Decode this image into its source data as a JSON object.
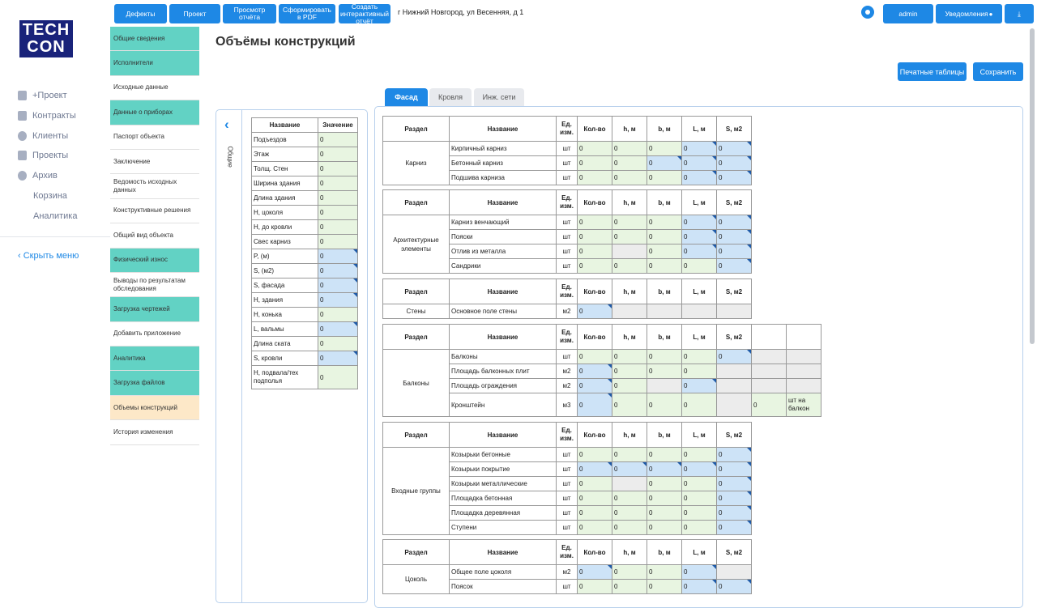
{
  "logo": {
    "line1": "TECH",
    "line2": "CON"
  },
  "left_nav": {
    "items": [
      {
        "label": "+Проект",
        "icon": "clipboard-icon",
        "top": 110
      },
      {
        "label": "Контракты",
        "icon": "document-icon",
        "top": 135
      },
      {
        "label": "Клиенты",
        "icon": "users-icon",
        "top": 160
      },
      {
        "label": "Проекты",
        "icon": "folder-icon",
        "top": 184
      },
      {
        "label": "Архив",
        "icon": "help-icon",
        "top": 209
      },
      {
        "label": "Корзина",
        "icon": "",
        "top": 234
      },
      {
        "label": "Аналитика",
        "icon": "",
        "top": 259
      }
    ],
    "hide_menu": "Скрыть меню"
  },
  "top_buttons": [
    "Дефекты",
    "Проект",
    "Просмотр отчёта",
    "Сформировать в PDF",
    "Создать интерактивный отчёт"
  ],
  "address": "г Нижний Новгород, ул Весенняя, д 1",
  "user_button": "admin",
  "notifications_button": "Уведомления",
  "sub_nav": [
    {
      "label": "Общие сведения",
      "state": "teal"
    },
    {
      "label": "Исполнители",
      "state": "teal"
    },
    {
      "label": "Исходные данные",
      "state": ""
    },
    {
      "label": "Данные о приборах",
      "state": "teal"
    },
    {
      "label": "Паспорт объекта",
      "state": ""
    },
    {
      "label": "Заключение",
      "state": ""
    },
    {
      "label": "Ведомость исходных данных",
      "state": ""
    },
    {
      "label": "Конструктивные решения",
      "state": ""
    },
    {
      "label": "Общий вид объекта",
      "state": ""
    },
    {
      "label": "Физический износ",
      "state": "teal"
    },
    {
      "label": "Выводы по результатам обследования",
      "state": ""
    },
    {
      "label": "Загрузка чертежей",
      "state": "teal"
    },
    {
      "label": "Добавить приложение",
      "state": ""
    },
    {
      "label": "Аналитика",
      "state": "teal"
    },
    {
      "label": "Загрузка файлов",
      "state": "teal"
    },
    {
      "label": "Объемы конструкций",
      "state": "active"
    },
    {
      "label": "История изменения",
      "state": ""
    }
  ],
  "page_title": "Объёмы конструкций",
  "actions": {
    "print_tables": "Печатные таблицы",
    "save": "Сохранить"
  },
  "tabs": [
    {
      "label": "Фасад",
      "active": true
    },
    {
      "label": "Кровля",
      "active": false
    },
    {
      "label": "Инж. сети",
      "active": false
    }
  ],
  "general": {
    "side_label": "Общие",
    "headers": [
      "Название",
      "Значение"
    ],
    "rows": [
      {
        "name": "Подъездов",
        "value": "0",
        "bg": "g"
      },
      {
        "name": "Этаж",
        "value": "0",
        "bg": "g"
      },
      {
        "name": "Толщ. Стен",
        "value": "0",
        "bg": "g"
      },
      {
        "name": "Ширина здания",
        "value": "0",
        "bg": "g"
      },
      {
        "name": "Длина здания",
        "value": "0",
        "bg": "g"
      },
      {
        "name": "H, цоколя",
        "value": "0",
        "bg": "g"
      },
      {
        "name": "H, до кровли",
        "value": "0",
        "bg": "g"
      },
      {
        "name": "Свес карниз",
        "value": "0",
        "bg": "g"
      },
      {
        "name": "P, (м)",
        "value": "0",
        "bg": "b"
      },
      {
        "name": "S, (м2)",
        "value": "0",
        "bg": "b"
      },
      {
        "name": "S, фасада",
        "value": "0",
        "bg": "b"
      },
      {
        "name": "H, здания",
        "value": "0",
        "bg": "b"
      },
      {
        "name": "H, конька",
        "value": "0",
        "bg": "g"
      },
      {
        "name": "L, вальмы",
        "value": "0",
        "bg": "b"
      },
      {
        "name": "Длина ската",
        "value": "0",
        "bg": "g"
      },
      {
        "name": "S, кровли",
        "value": "0",
        "bg": "b"
      },
      {
        "name": "H, подвала/тех подполья",
        "value": "0",
        "bg": "g"
      }
    ]
  },
  "section_headers": [
    "Раздел",
    "Название",
    "Ед. изм.",
    "Кол-во",
    "h, м",
    "b, м",
    "L, м",
    "S, м2"
  ],
  "sections": [
    {
      "name": "Карниз",
      "top": 11,
      "rows": [
        {
          "name": "Кирпичный карниз",
          "unit": "шт",
          "cells": [
            [
              "0",
              "g"
            ],
            [
              "0",
              "g"
            ],
            [
              "0",
              "g"
            ],
            [
              "0",
              "b"
            ],
            [
              "0",
              "b"
            ]
          ]
        },
        {
          "name": "Бетонный карниз",
          "unit": "шт",
          "cells": [
            [
              "0",
              "g"
            ],
            [
              "0",
              "g"
            ],
            [
              "0",
              "b"
            ],
            [
              "0",
              "b"
            ],
            [
              "0",
              "b"
            ]
          ]
        },
        {
          "name": "Подшива карниза",
          "unit": "шт",
          "cells": [
            [
              "0",
              "g"
            ],
            [
              "0",
              "g"
            ],
            [
              "0",
              "g"
            ],
            [
              "0",
              "b"
            ],
            [
              "0",
              "b"
            ]
          ]
        }
      ]
    },
    {
      "name": "Архитектурные элементы",
      "top": 102,
      "rows": [
        {
          "name": "Карниз венчающий",
          "unit": "шт",
          "cells": [
            [
              "0",
              "g"
            ],
            [
              "0",
              "g"
            ],
            [
              "0",
              "g"
            ],
            [
              "0",
              "b"
            ],
            [
              "0",
              "b"
            ]
          ]
        },
        {
          "name": "Пояски",
          "unit": "шт",
          "cells": [
            [
              "0",
              "g"
            ],
            [
              "0",
              "g"
            ],
            [
              "0",
              "g"
            ],
            [
              "0",
              "b"
            ],
            [
              "0",
              "b"
            ]
          ]
        },
        {
          "name": "Отлив из металла",
          "unit": "шт",
          "cells": [
            [
              "0",
              "g"
            ],
            [
              "",
              "x"
            ],
            [
              "0",
              "g"
            ],
            [
              "0",
              "b"
            ],
            [
              "0",
              "b"
            ]
          ]
        },
        {
          "name": "Сандрики",
          "unit": "шт",
          "cells": [
            [
              "0",
              "g"
            ],
            [
              "0",
              "g"
            ],
            [
              "0",
              "g"
            ],
            [
              "0",
              "g"
            ],
            [
              "0",
              "b"
            ]
          ]
        }
      ]
    },
    {
      "name": "Стены",
      "top": 212,
      "rows": [
        {
          "name": "Основное поле стены",
          "unit": "м2",
          "cells": [
            [
              "0",
              "b"
            ],
            [
              "",
              "x"
            ],
            [
              "",
              "x"
            ],
            [
              "",
              "x"
            ],
            [
              "",
              "x"
            ]
          ]
        }
      ]
    },
    {
      "name": "Балконы",
      "top": 268,
      "extra": true,
      "rows": [
        {
          "name": "Балконы",
          "unit": "шт",
          "cells": [
            [
              "0",
              "g"
            ],
            [
              "0",
              "g"
            ],
            [
              "0",
              "g"
            ],
            [
              "0",
              "g"
            ],
            [
              "0",
              "b"
            ],
            [
              "",
              "x"
            ],
            [
              "",
              "x"
            ]
          ]
        },
        {
          "name": "Площадь балконных плит",
          "unit": "м2",
          "cells": [
            [
              "0",
              "b"
            ],
            [
              "0",
              "g"
            ],
            [
              "0",
              "g"
            ],
            [
              "0",
              "g"
            ],
            [
              "",
              "x"
            ],
            [
              "",
              "x"
            ],
            [
              "",
              "x"
            ]
          ]
        },
        {
          "name": "Площадь ограждения",
          "unit": "м2",
          "cells": [
            [
              "0",
              "b"
            ],
            [
              "0",
              "g"
            ],
            [
              "",
              "x"
            ],
            [
              "0",
              "b"
            ],
            [
              "",
              "x"
            ],
            [
              "",
              "x"
            ],
            [
              "",
              "x"
            ]
          ]
        },
        {
          "name": "Кронштейн",
          "unit": "м3",
          "tall": true,
          "cells": [
            [
              "0",
              "b"
            ],
            [
              "0",
              "g"
            ],
            [
              "0",
              "g"
            ],
            [
              "0",
              "g"
            ],
            [
              "",
              "x"
            ],
            [
              "0",
              "g"
            ],
            [
              "шт на балкон",
              "g"
            ]
          ]
        }
      ]
    },
    {
      "name": "Входные группы",
      "top": 389,
      "rows": [
        {
          "name": "Козырьки бетонные",
          "unit": "шт",
          "cells": [
            [
              "0",
              "g"
            ],
            [
              "0",
              "g"
            ],
            [
              "0",
              "g"
            ],
            [
              "0",
              "g"
            ],
            [
              "0",
              "b"
            ]
          ]
        },
        {
          "name": "Козырьки покрытие",
          "unit": "шт",
          "cells": [
            [
              "0",
              "b"
            ],
            [
              "0",
              "b"
            ],
            [
              "0",
              "b"
            ],
            [
              "0",
              "b"
            ],
            [
              "0",
              "b"
            ]
          ]
        },
        {
          "name": "Козырьки металлические",
          "unit": "шт",
          "cells": [
            [
              "0",
              "g"
            ],
            [
              "",
              "x"
            ],
            [
              "0",
              "g"
            ],
            [
              "0",
              "g"
            ],
            [
              "0",
              "b"
            ]
          ]
        },
        {
          "name": "Площадка бетонная",
          "unit": "шт",
          "cells": [
            [
              "0",
              "g"
            ],
            [
              "0",
              "g"
            ],
            [
              "0",
              "g"
            ],
            [
              "0",
              "g"
            ],
            [
              "0",
              "b"
            ]
          ]
        },
        {
          "name": "Площадка деревянная",
          "unit": "шт",
          "cells": [
            [
              "0",
              "g"
            ],
            [
              "0",
              "g"
            ],
            [
              "0",
              "g"
            ],
            [
              "0",
              "g"
            ],
            [
              "0",
              "b"
            ]
          ]
        },
        {
          "name": "Ступени",
          "unit": "шт",
          "cells": [
            [
              "0",
              "g"
            ],
            [
              "0",
              "g"
            ],
            [
              "0",
              "g"
            ],
            [
              "0",
              "g"
            ],
            [
              "0",
              "b"
            ]
          ]
        }
      ]
    },
    {
      "name": "Цоколь",
      "top": 534,
      "rows": [
        {
          "name": "Общее поле цоколя",
          "unit": "м2",
          "cells": [
            [
              "0",
              "b"
            ],
            [
              "0",
              "g"
            ],
            [
              "0",
              "g"
            ],
            [
              "0",
              "b"
            ],
            [
              "",
              "x"
            ]
          ]
        },
        {
          "name": "Поясок",
          "unit": "шт",
          "cells": [
            [
              "0",
              "g"
            ],
            [
              "0",
              "g"
            ],
            [
              "0",
              "g"
            ],
            [
              "0",
              "b"
            ],
            [
              "0",
              "b"
            ]
          ]
        }
      ]
    }
  ]
}
